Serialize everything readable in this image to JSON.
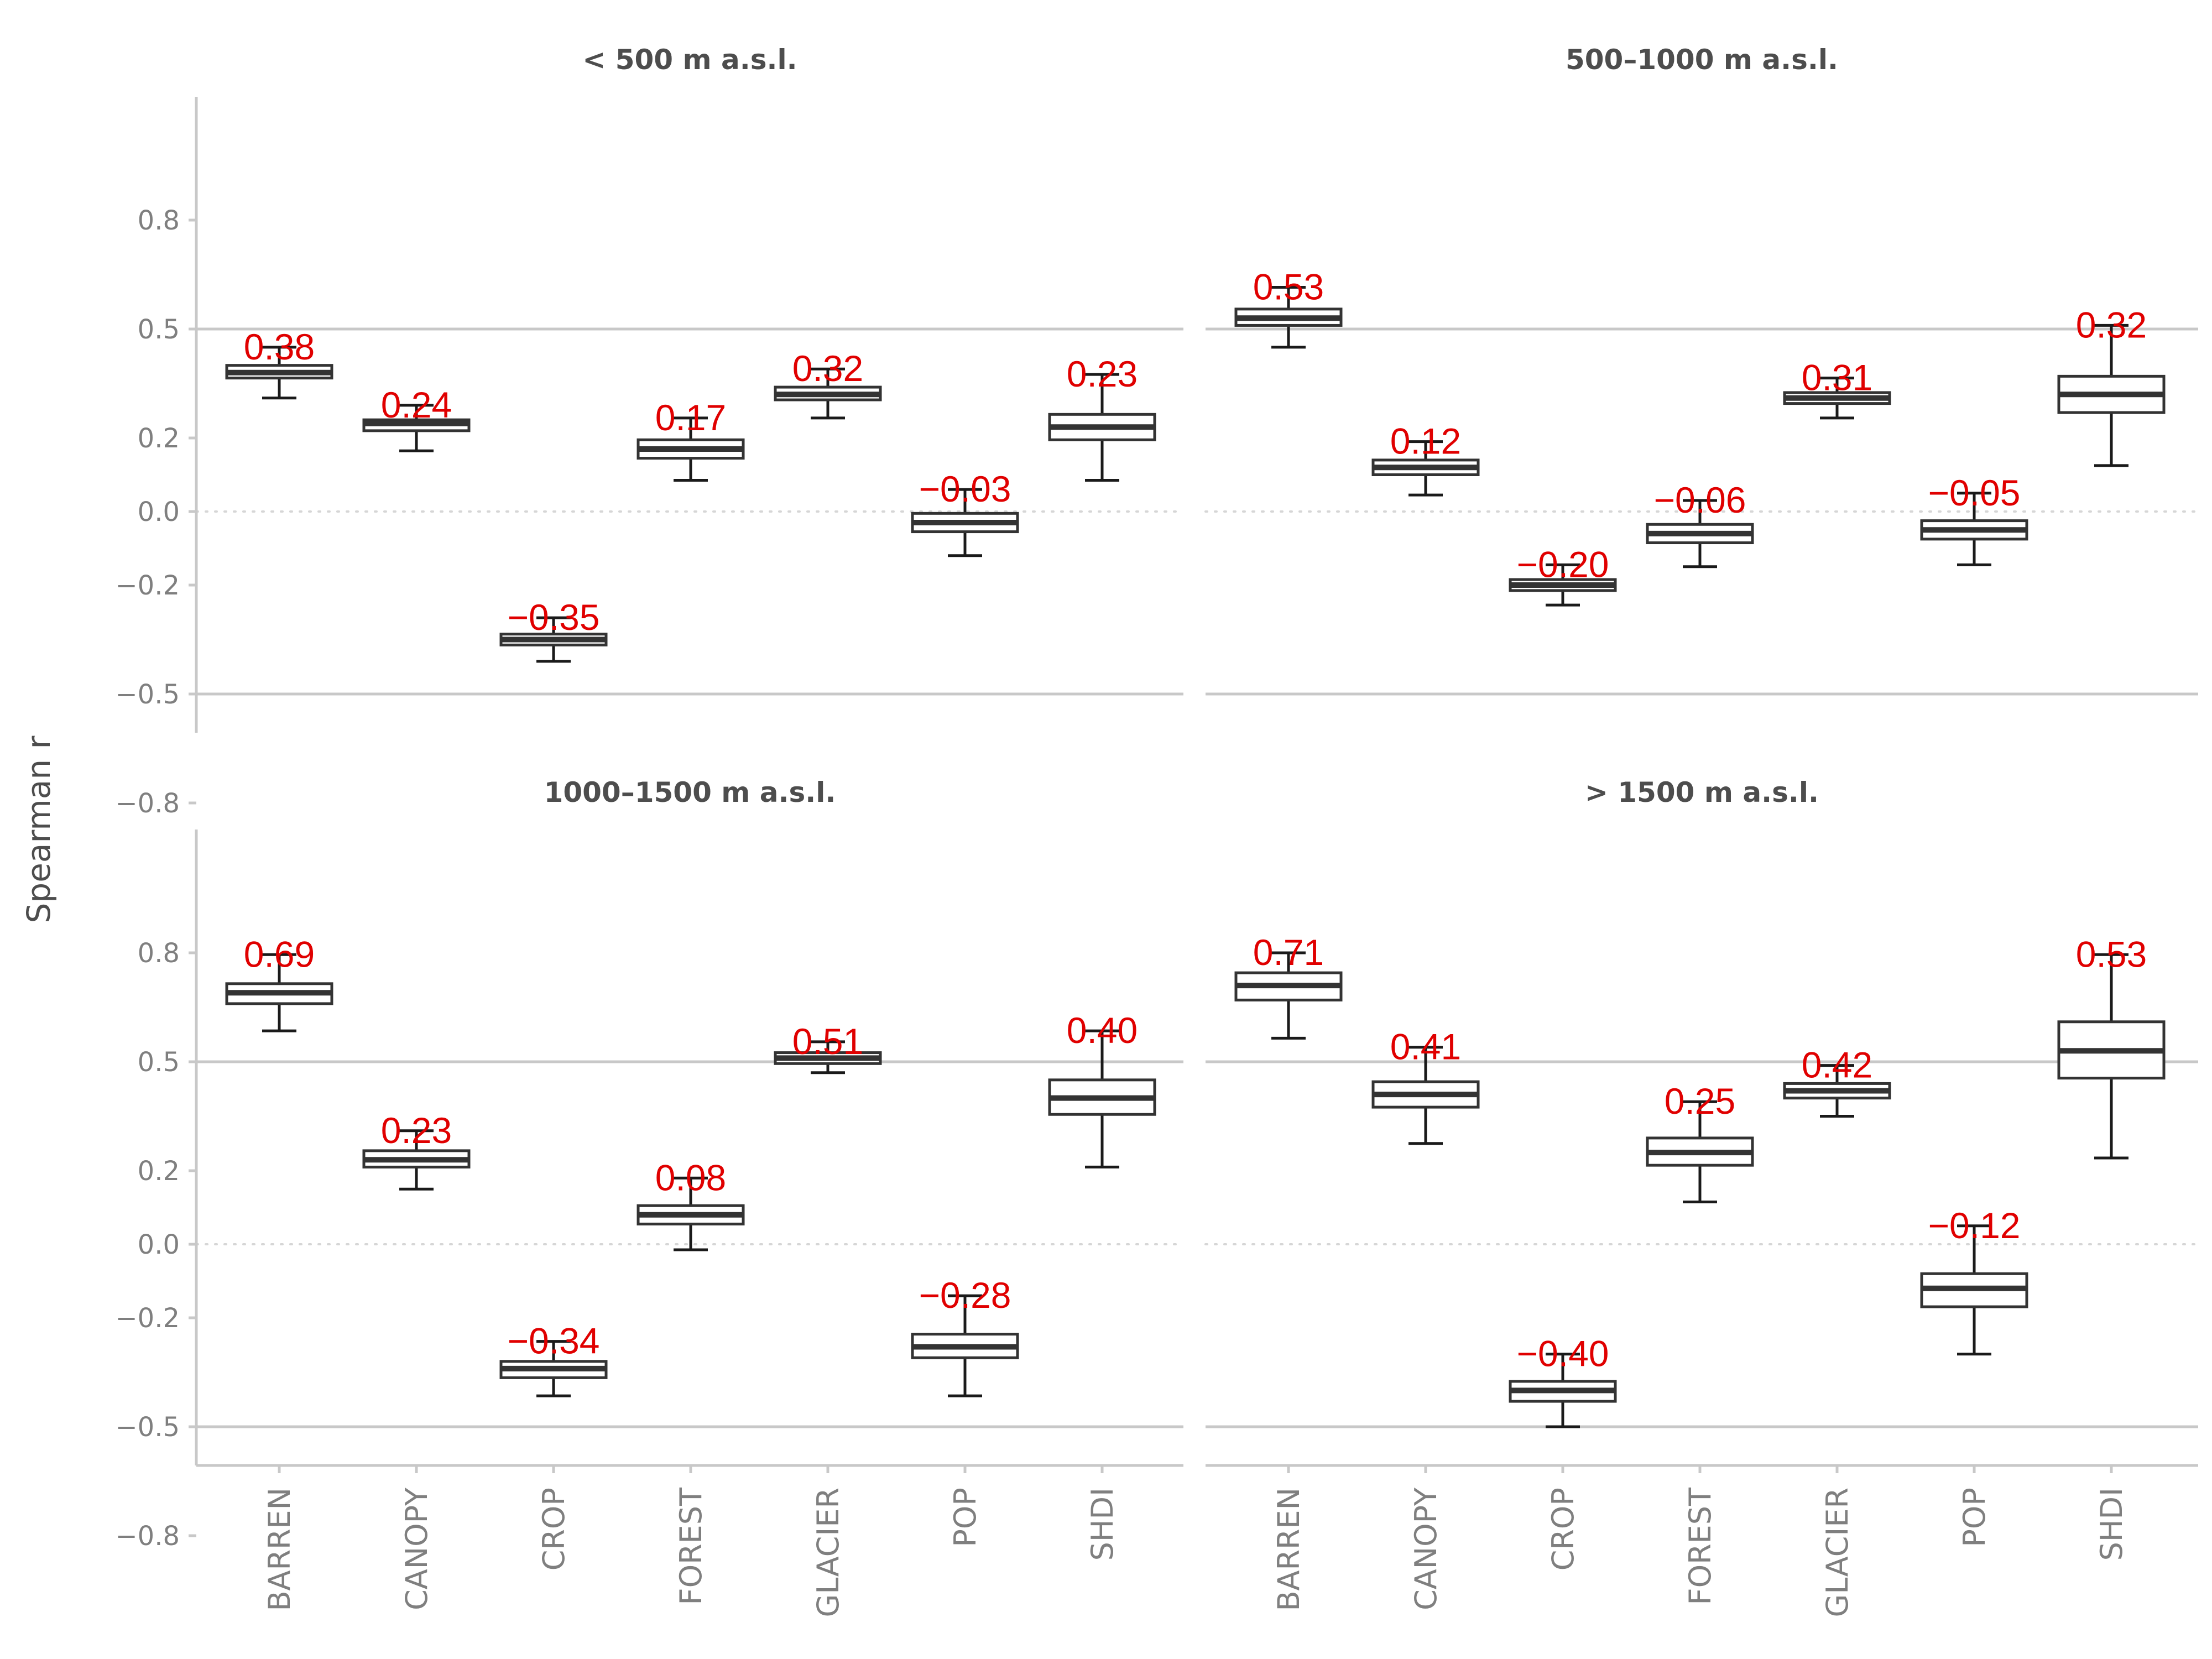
{
  "chart_data": {
    "type": "boxplot",
    "ylabel": "Spearman r",
    "categories": [
      "BARREN",
      "CANOPY",
      "CROP",
      "FOREST",
      "GLACIER",
      "POP",
      "SHDI"
    ],
    "y_ticks": [
      -0.8,
      -0.5,
      -0.2,
      0.0,
      0.2,
      0.5,
      0.8
    ],
    "y_tick_labels": [
      "−0.8",
      "−0.5",
      "−0.2",
      "0.0",
      "0.2",
      "0.5",
      "0.8"
    ],
    "ylim": [
      -0.85,
      0.85
    ],
    "reference_lines": [
      -0.5,
      0.5
    ],
    "zero_line": 0.0,
    "grid": false,
    "facets": [
      {
        "title": "< 500 m a.s.l.",
        "boxes": [
          {
            "category": "BARREN",
            "min": 0.31,
            "q1": 0.365,
            "median": 0.38,
            "q3": 0.4,
            "max": 0.45,
            "label": "0.38"
          },
          {
            "category": "CANOPY",
            "min": 0.165,
            "q1": 0.22,
            "median": 0.24,
            "q3": 0.25,
            "max": 0.29,
            "label": "0.24"
          },
          {
            "category": "CROP",
            "min": -0.41,
            "q1": -0.365,
            "median": -0.35,
            "q3": -0.335,
            "max": -0.29,
            "label": "−0.35"
          },
          {
            "category": "FOREST",
            "min": 0.085,
            "q1": 0.145,
            "median": 0.17,
            "q3": 0.195,
            "max": 0.255,
            "label": "0.17"
          },
          {
            "category": "GLACIER",
            "min": 0.255,
            "q1": 0.305,
            "median": 0.32,
            "q3": 0.34,
            "max": 0.39,
            "label": "0.32"
          },
          {
            "category": "POP",
            "min": -0.12,
            "q1": -0.055,
            "median": -0.03,
            "q3": -0.005,
            "max": 0.06,
            "label": "−0.03"
          },
          {
            "category": "SHDI",
            "min": 0.085,
            "q1": 0.195,
            "median": 0.23,
            "q3": 0.265,
            "max": 0.375,
            "label": "0.23"
          }
        ]
      },
      {
        "title": "500–1000 m a.s.l.",
        "boxes": [
          {
            "category": "BARREN",
            "min": 0.45,
            "q1": 0.51,
            "median": 0.53,
            "q3": 0.555,
            "max": 0.615,
            "label": "0.53"
          },
          {
            "category": "CANOPY",
            "min": 0.045,
            "q1": 0.1,
            "median": 0.12,
            "q3": 0.14,
            "max": 0.19,
            "label": "0.12"
          },
          {
            "category": "CROP",
            "min": -0.255,
            "q1": -0.215,
            "median": -0.2,
            "q3": -0.185,
            "max": -0.145,
            "label": "−0.20"
          },
          {
            "category": "FOREST",
            "min": -0.15,
            "q1": -0.085,
            "median": -0.06,
            "q3": -0.035,
            "max": 0.03,
            "label": "−0.06"
          },
          {
            "category": "GLACIER",
            "min": 0.255,
            "q1": 0.295,
            "median": 0.31,
            "q3": 0.325,
            "max": 0.365,
            "label": "0.31"
          },
          {
            "category": "POP",
            "min": -0.145,
            "q1": -0.075,
            "median": -0.05,
            "q3": -0.025,
            "max": 0.05,
            "label": "−0.05"
          },
          {
            "category": "SHDI",
            "min": 0.125,
            "q1": 0.27,
            "median": 0.32,
            "q3": 0.37,
            "max": 0.51,
            "label": "0.32"
          }
        ]
      },
      {
        "title": "1000–1500 m a.s.l.",
        "boxes": [
          {
            "category": "BARREN",
            "min": 0.585,
            "q1": 0.66,
            "median": 0.69,
            "q3": 0.715,
            "max": 0.795,
            "label": "0.69"
          },
          {
            "category": "CANOPY",
            "min": 0.15,
            "q1": 0.21,
            "median": 0.23,
            "q3": 0.255,
            "max": 0.31,
            "label": "0.23"
          },
          {
            "category": "CROP",
            "min": -0.415,
            "q1": -0.365,
            "median": -0.34,
            "q3": -0.32,
            "max": -0.265,
            "label": "−0.34"
          },
          {
            "category": "FOREST",
            "min": -0.015,
            "q1": 0.055,
            "median": 0.08,
            "q3": 0.105,
            "max": 0.18,
            "label": "0.08"
          },
          {
            "category": "GLACIER",
            "min": 0.47,
            "q1": 0.495,
            "median": 0.51,
            "q3": 0.525,
            "max": 0.555,
            "label": "0.51"
          },
          {
            "category": "POP",
            "min": -0.415,
            "q1": -0.31,
            "median": -0.28,
            "q3": -0.245,
            "max": -0.14,
            "label": "−0.28"
          },
          {
            "category": "SHDI",
            "min": 0.21,
            "q1": 0.355,
            "median": 0.4,
            "q3": 0.45,
            "max": 0.585,
            "label": "0.40"
          }
        ]
      },
      {
        "title": "> 1500 m a.s.l.",
        "boxes": [
          {
            "category": "BARREN",
            "min": 0.565,
            "q1": 0.67,
            "median": 0.71,
            "q3": 0.745,
            "max": 0.8,
            "label": "0.71"
          },
          {
            "category": "CANOPY",
            "min": 0.275,
            "q1": 0.375,
            "median": 0.41,
            "q3": 0.445,
            "max": 0.54,
            "label": "0.41"
          },
          {
            "category": "CROP",
            "min": -0.5,
            "q1": -0.43,
            "median": -0.4,
            "q3": -0.375,
            "max": -0.3,
            "label": "−0.40"
          },
          {
            "category": "FOREST",
            "min": 0.115,
            "q1": 0.215,
            "median": 0.25,
            "q3": 0.29,
            "max": 0.39,
            "label": "0.25"
          },
          {
            "category": "GLACIER",
            "min": 0.35,
            "q1": 0.4,
            "median": 0.42,
            "q3": 0.44,
            "max": 0.49,
            "label": "0.42"
          },
          {
            "category": "POP",
            "min": -0.3,
            "q1": -0.17,
            "median": -0.12,
            "q3": -0.08,
            "max": 0.05,
            "label": "−0.12"
          },
          {
            "category": "SHDI",
            "min": 0.235,
            "q1": 0.455,
            "median": 0.53,
            "q3": 0.61,
            "max": 0.795,
            "label": "0.53"
          }
        ]
      }
    ]
  }
}
